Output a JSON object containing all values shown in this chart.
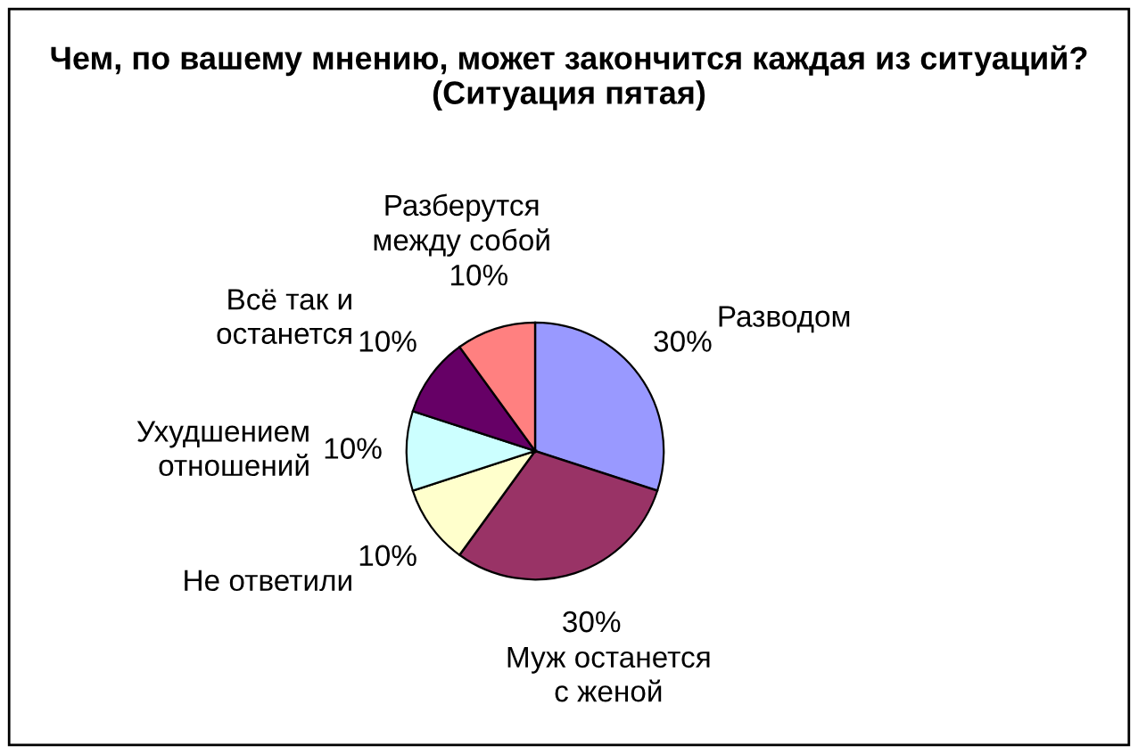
{
  "chart_data": {
    "type": "pie",
    "title": "Чем, по вашему мнению, может закончится каждая из ситуаций? (Ситуация пятая)",
    "categories": [
      "Разводом",
      "Муж останется с женой",
      "Не ответили",
      "Ухудшением отношений",
      "Всё так и останется",
      "Разберутся между собой"
    ],
    "values": [
      30,
      30,
      10,
      10,
      10,
      10
    ],
    "value_labels": [
      "30%",
      "30%",
      "10%",
      "10%",
      "10%",
      "10%"
    ],
    "colors": [
      "#9999ff",
      "#993366",
      "#ffffcc",
      "#ccffff",
      "#660066",
      "#ff8080"
    ],
    "legend": false
  }
}
